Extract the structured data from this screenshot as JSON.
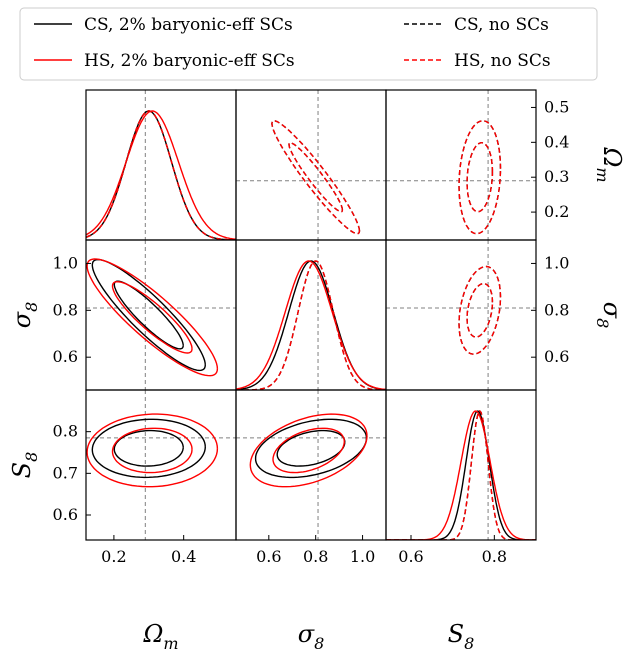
{
  "chart_data": {
    "type": "corner",
    "parameters": [
      "Ω_m",
      "σ_8",
      "S_8"
    ],
    "axis_labels": {
      "omega_m": {
        "base": "Ω",
        "sub": "m"
      },
      "sigma_8": {
        "base": "σ",
        "sub": "8"
      },
      "s_8": {
        "base": "S",
        "sub": "8"
      }
    },
    "ranges": {
      "omega_m": [
        0.12,
        0.55
      ],
      "sigma_8": [
        0.46,
        1.1
      ],
      "s_8": [
        0.54,
        0.9
      ]
    },
    "ticks": {
      "omega_m": {
        "values": [
          0.2,
          0.4
        ],
        "labels": [
          "0.2",
          "0.4"
        ],
        "right_values": [
          0.2,
          0.3,
          0.4,
          0.5
        ],
        "right_labels": [
          "0.2",
          "0.3",
          "0.4",
          "0.5"
        ]
      },
      "sigma_8": {
        "values": [
          0.6,
          0.8,
          1.0
        ],
        "labels": [
          "0.6",
          "0.8",
          "1.0"
        ]
      },
      "s_8": {
        "values": [
          0.6,
          0.7,
          0.8
        ],
        "labels": [
          "0.6",
          "0.7",
          "0.8"
        ],
        "bottom_values": [
          0.6,
          0.8
        ],
        "bottom_labels": [
          "0.6",
          "0.8"
        ]
      }
    },
    "truth": {
      "omega_m": 0.29,
      "sigma_8": 0.81,
      "s_8": 0.785
    },
    "legend": [
      {
        "label": "CS, 2% baryonic-eff SCs",
        "color": "#000000",
        "dash": "solid"
      },
      {
        "label": "CS, no SCs",
        "color": "#000000",
        "dash": "dashed"
      },
      {
        "label": "HS, 2% baryonic-eff SCs",
        "color": "#ff0000",
        "dash": "solid"
      },
      {
        "label": "HS, no SCs",
        "color": "#ff0000",
        "dash": "dashed"
      }
    ],
    "legend_placement": "top",
    "series": [
      {
        "name": "CS, 2% baryonic-eff SCs",
        "color": "#000000",
        "dash": "solid",
        "mean": {
          "omega_m": 0.3,
          "sigma_8": 0.78,
          "s_8": 0.76
        },
        "sd": {
          "omega_m": 0.065,
          "sigma_8": 0.095,
          "s_8": 0.028
        },
        "corr": {
          "omega_m_sigma_8": -0.9,
          "omega_m_s_8": 0.05,
          "sigma_8_s_8": 0.35
        }
      },
      {
        "name": "HS, 2% baryonic-eff SCs",
        "color": "#ff0000",
        "dash": "solid",
        "mean": {
          "omega_m": 0.31,
          "sigma_8": 0.77,
          "s_8": 0.755
        },
        "sd": {
          "omega_m": 0.075,
          "sigma_8": 0.1,
          "s_8": 0.035
        },
        "corr": {
          "omega_m_sigma_8": -0.88,
          "omega_m_s_8": 0.05,
          "sigma_8_s_8": 0.4
        }
      },
      {
        "name": "CS, no SCs",
        "color": "#000000",
        "dash": "dashed",
        "mean": {
          "omega_m": 0.3,
          "sigma_8": 0.8,
          "s_8": 0.765
        },
        "sd": {
          "omega_m": 0.065,
          "sigma_8": 0.075,
          "s_8": 0.02
        },
        "corr": {
          "omega_m_sigma_8": -0.95,
          "omega_m_s_8": 0.15,
          "sigma_8_s_8": 0.3
        }
      },
      {
        "name": "HS, no SCs",
        "color": "#ff0000",
        "dash": "dashed",
        "mean": {
          "omega_m": 0.3,
          "sigma_8": 0.8,
          "s_8": 0.765
        },
        "sd": {
          "omega_m": 0.065,
          "sigma_8": 0.075,
          "s_8": 0.02
        },
        "corr": {
          "omega_m_sigma_8": -0.95,
          "omega_m_s_8": 0.15,
          "sigma_8_s_8": 0.3
        }
      }
    ],
    "contour_levels_sigma": [
      1.52,
      2.49
    ],
    "grid": false
  }
}
